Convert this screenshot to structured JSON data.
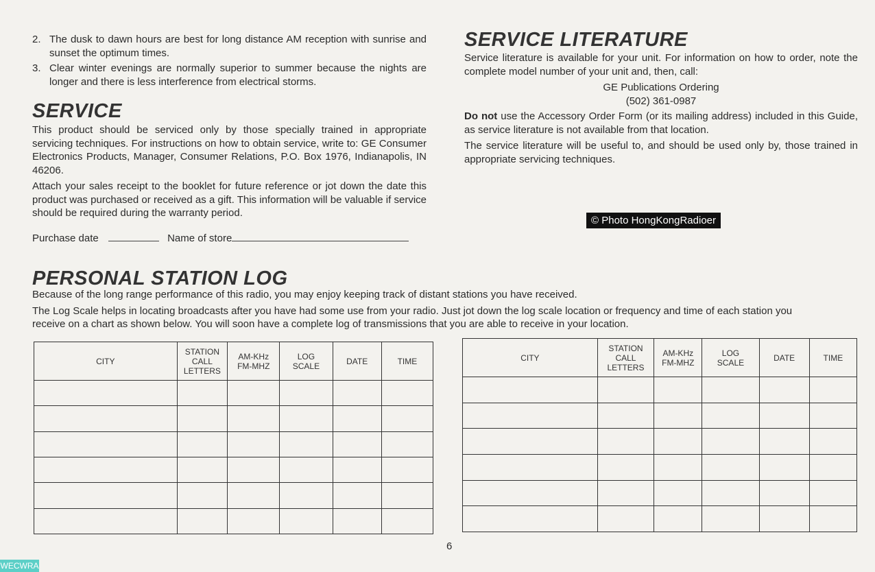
{
  "left": {
    "tips": [
      {
        "num": "2.",
        "text": "The dusk to dawn hours are best for long distance AM reception with sunrise and sunset the optimum times."
      },
      {
        "num": "3.",
        "text": "Clear winter evenings are normally superior to summer because the nights are longer and there is less interference from electrical storms."
      }
    ],
    "service": {
      "title": "SERVICE",
      "p1": "This product should be serviced only by those specially trained in appropriate servicing techniques. For instructions on how to obtain service, write to: GE Consumer Electronics Products, Manager, Consumer Relations, P.O. Box 1976, Indianapolis, IN 46206.",
      "p2": "Attach your sales receipt to the booklet for future reference or jot down the date this product was purchased or received as a gift. This information will be valuable if service should be required during the warranty period.",
      "purchase_date_label": "Purchase date",
      "store_label": "Name of store"
    }
  },
  "right": {
    "title": "SERVICE LITERATURE",
    "p1": "Service literature is available for your unit. For information on how to order, note the complete model number of your unit and, then, call:",
    "contact_name": "GE Publications Ordering",
    "contact_phone": "(502) 361-0987",
    "p2_bold": "Do not",
    "p2": " use the Accessory Order Form (or its mailing address) included in this Guide, as service literature is not available from that location.",
    "p3": "The service literature will be useful to, and should be used only by, those trained in appropriate servicing techniques."
  },
  "log": {
    "title": "PERSONAL STATION LOG",
    "p1": "Because of the long range performance of this radio, you may enjoy keeping track of distant stations you have received.",
    "p2": "The Log Scale helps in locating broadcasts after you have had some use from your radio. Just jot down the log scale location or frequency and time of each station you receive on a chart as shown below. You will soon have a complete log of transmissions that you are able to receive in your location.",
    "columns": [
      "CITY",
      "STATION\nCALL\nLETTERS",
      "AM-KHz\nFM-MHZ",
      "LOG\nSCALE",
      "DATE",
      "TIME"
    ]
  },
  "page_number": "6",
  "watermark": "© Photo HongKongRadioer",
  "badge": "WECWRA"
}
